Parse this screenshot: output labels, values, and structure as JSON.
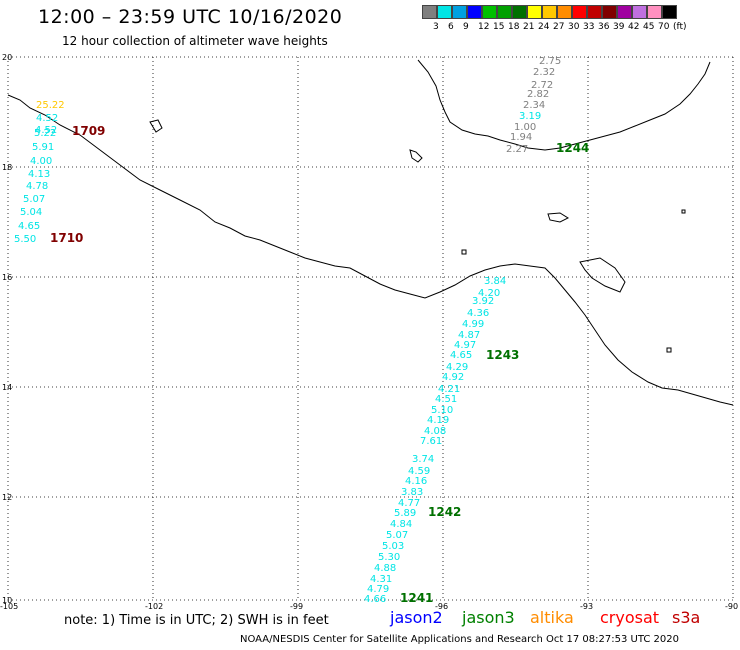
{
  "header": {
    "title": "12:00 – 23:59 UTC 10/16/2020",
    "subtitle": "12 hour collection of altimeter wave heights"
  },
  "colorbar": {
    "colors": [
      "#7f7f7f",
      "#00e5e5",
      "#00a0e0",
      "#0000ff",
      "#00c000",
      "#00a000",
      "#007000",
      "#ffff00",
      "#ffc800",
      "#ff8c00",
      "#ff0000",
      "#c00000",
      "#800000",
      "#a000a0",
      "#c070e0",
      "#ff90c0",
      "#000000"
    ],
    "labels": [
      "3",
      "6",
      "9",
      "12",
      "15",
      "18",
      "21",
      "24",
      "27",
      "30",
      "33",
      "36",
      "39",
      "42",
      "45",
      "70",
      "(ft)"
    ]
  },
  "axes": {
    "lon_ticks": [
      "-105",
      "-102",
      "-99",
      "-96",
      "-93",
      "-90"
    ],
    "lat_ticks": [
      "20",
      "18",
      "16",
      "14",
      "12",
      "10"
    ]
  },
  "tracks": [
    {
      "id": "1709",
      "label": "1709",
      "label_color": "#800000",
      "values": [
        "25.22",
        "4.52",
        "4.52",
        "5.22",
        "5.91",
        "4.00",
        "4.13",
        "4.78",
        "5.07",
        "5.04",
        "4.65",
        "5.50"
      ],
      "colors": [
        "#ffc800",
        "#00e5e5",
        "#00e5e5",
        "#00e5e5",
        "#00e5e5",
        "#00e5e5",
        "#00e5e5",
        "#00e5e5",
        "#00e5e5",
        "#00e5e5",
        "#00e5e5",
        "#00e5e5"
      ]
    },
    {
      "id": "1710",
      "label": "1710",
      "label_color": "#800000"
    },
    {
      "id": "1244",
      "label": "1244",
      "label_color": "#007000",
      "values": [
        "2.75",
        "2.32",
        "2.72",
        "2.82",
        "2.34",
        "3.19",
        "1.00",
        "1.94",
        "2.27"
      ],
      "colors": [
        "#7f7f7f",
        "#7f7f7f",
        "#7f7f7f",
        "#7f7f7f",
        "#7f7f7f",
        "#00e5e5",
        "#7f7f7f",
        "#7f7f7f",
        "#7f7f7f"
      ]
    },
    {
      "id": "1243",
      "label": "1243",
      "label_color": "#007000",
      "values": [
        "3.84",
        "4.20",
        "3.92",
        "4.36",
        "4.99",
        "4.87",
        "4.97",
        "4.65",
        "4.29",
        "4.92",
        "4.21",
        "4.51",
        "5.10",
        "4.19",
        "4.08",
        "7.61"
      ],
      "colors": [
        "#00e5e5",
        "#00e5e5",
        "#00e5e5",
        "#00e5e5",
        "#00e5e5",
        "#00e5e5",
        "#00e5e5",
        "#00e5e5",
        "#00e5e5",
        "#00e5e5",
        "#00e5e5",
        "#00e5e5",
        "#00e5e5",
        "#00e5e5",
        "#00e5e5",
        "#00e5e5"
      ]
    },
    {
      "id": "1242",
      "label": "1242",
      "label_color": "#007000",
      "values": [
        "3.74",
        "4.59",
        "4.16",
        "3.83",
        "4.77",
        "5.89",
        "4.84",
        "5.07",
        "5.03",
        "5.30",
        "4.88",
        "4.31",
        "4.79",
        "4.66"
      ],
      "colors": [
        "#00e5e5",
        "#00e5e5",
        "#00e5e5",
        "#00e5e5",
        "#00e5e5",
        "#00e5e5",
        "#00e5e5",
        "#00e5e5",
        "#00e5e5",
        "#00e5e5",
        "#00e5e5",
        "#00e5e5",
        "#00e5e5",
        "#00e5e5"
      ]
    },
    {
      "id": "1241",
      "label": "1241",
      "label_color": "#007000"
    }
  ],
  "footer": {
    "note": "note: 1) Time is in UTC; 2) SWH is in feet",
    "satellites": [
      {
        "name": "jason2",
        "color": "#0000ff"
      },
      {
        "name": "jason3",
        "color": "#008000"
      },
      {
        "name": "altika",
        "color": "#ff8c00"
      },
      {
        "name": "cryosat",
        "color": "#ff0000"
      },
      {
        "name": "s3a",
        "color": "#c00000"
      }
    ],
    "credit": "NOAA/NESDIS Center for Satellite Applications and Research    Oct 17 08:27:53 UTC 2020"
  }
}
